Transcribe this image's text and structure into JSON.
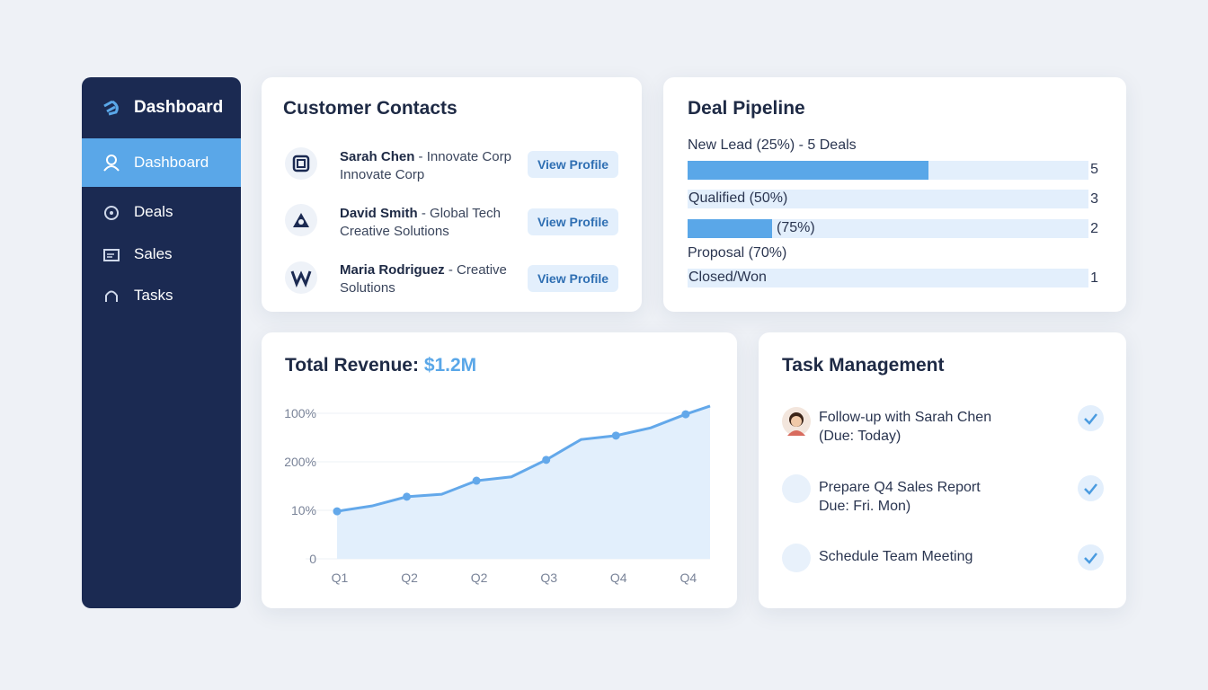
{
  "sidebar": {
    "title": "Dashboard",
    "items": [
      "Dashboard",
      "Deals",
      "Sales",
      "Tasks"
    ]
  },
  "contacts": {
    "title": "Customer Contacts",
    "items": [
      {
        "name": "Sarah Chen",
        "company": "- Innovate Corp",
        "sub": "Innovate Corp",
        "action": "View Profile"
      },
      {
        "name": "David Smith",
        "company": "- Global Tech",
        "sub": "Creative Solutions",
        "action": "View Profile"
      },
      {
        "name": "Maria Rodriguez",
        "company": "- Creative",
        "sub": "Solutions",
        "action": "View Profile"
      }
    ]
  },
  "pipeline": {
    "title": "Deal Pipeline",
    "stages": [
      {
        "label": "New Lead (25%) - 5 Deals",
        "count": 5,
        "progress": 60
      },
      {
        "label": "Qualified (50%)",
        "count": 3,
        "progress": 0
      },
      {
        "label": "(75%)",
        "count": 2,
        "progress": 21
      },
      {
        "label": "Proposal (70%)"
      },
      {
        "label": "Closed/Won",
        "count": 1,
        "progress": 0
      }
    ]
  },
  "chart_data": {
    "type": "line",
    "title": "Total Revenue:",
    "subtitle": "$1.2M",
    "x": [
      0,
      0.5,
      1,
      1.5,
      2,
      2.5,
      3,
      3.5,
      4,
      4.5,
      5,
      5.35
    ],
    "series": [
      {
        "color": "#63a8ea",
        "values": [
          0.98,
          1.09,
          1.28,
          1.33,
          1.61,
          1.69,
          2.04,
          2.46,
          2.54,
          2.7,
          2.98,
          3.15
        ]
      }
    ],
    "xlim": [
      0,
      5.35
    ],
    "xticks": [
      {
        "value": 0,
        "label": "Q1"
      },
      {
        "value": 1,
        "label": "Q2"
      },
      {
        "value": 2,
        "label": "Q2"
      },
      {
        "value": 3,
        "label": "Q3"
      },
      {
        "value": 4,
        "label": "Q4"
      },
      {
        "value": 5,
        "label": "Q4"
      }
    ],
    "ylim": [
      0,
      3.2
    ],
    "yticks": [
      0,
      {
        "value": 1,
        "label": "10%"
      },
      {
        "value": 2,
        "label": "200%"
      },
      {
        "value": 3,
        "label": "100%"
      }
    ],
    "grid": true,
    "area": true
  },
  "tasks": {
    "title": "Task Management",
    "items": [
      {
        "title": "Follow-up with Sarah Chen",
        "sub": "(Due: Today)"
      },
      {
        "title": "Prepare Q4 Sales Report",
        "sub": "Due: Fri. Mon)"
      },
      {
        "title": "Schedule Team Meeting"
      }
    ]
  }
}
